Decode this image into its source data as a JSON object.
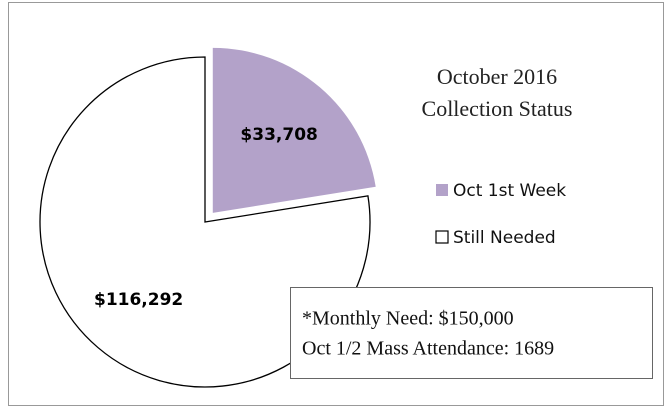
{
  "chart_data": {
    "type": "pie",
    "title": [
      "October 2016",
      "Collection Status"
    ],
    "categories": [
      "Oct 1st Week",
      "Still Needed"
    ],
    "values": [
      33708,
      116292
    ],
    "value_labels": [
      "$33,708",
      "$116,292"
    ],
    "colors": [
      "#b3a2c9",
      "#ffffff"
    ],
    "legend": "right",
    "annotations": [
      "*Monthly Need:  $150,000",
      "Oct 1/2 Mass Attendance:  1689"
    ]
  }
}
